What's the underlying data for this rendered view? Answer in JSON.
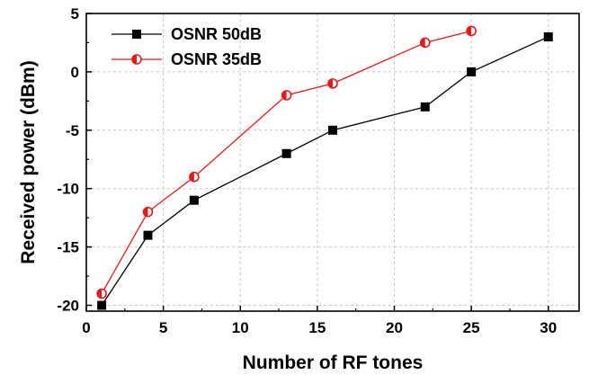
{
  "chart_data": {
    "type": "line",
    "xlabel": "Number of RF tones",
    "ylabel": "Received power (dBm)",
    "xlim": [
      0,
      32
    ],
    "ylim": [
      -20.5,
      5
    ],
    "xticks": [
      0,
      5,
      10,
      15,
      20,
      25,
      30
    ],
    "yticks": [
      5,
      0,
      -5,
      -10,
      -15,
      -20
    ],
    "grid": true,
    "legend_position": "top-left",
    "series": [
      {
        "name": "OSNR 50dB",
        "color": "#000000",
        "marker": "square",
        "x": [
          1,
          4,
          7,
          13,
          16,
          22,
          25,
          30
        ],
        "y": [
          -20,
          -14,
          -11,
          -7,
          -5,
          -3,
          0,
          3
        ]
      },
      {
        "name": "OSNR 35dB",
        "color": "#e41a1c",
        "marker": "half-filled-circle",
        "x": [
          1,
          4,
          7,
          13,
          16,
          22,
          25
        ],
        "y": [
          -19,
          -12,
          -9,
          -2,
          -1,
          2.5,
          3.5
        ]
      }
    ]
  }
}
